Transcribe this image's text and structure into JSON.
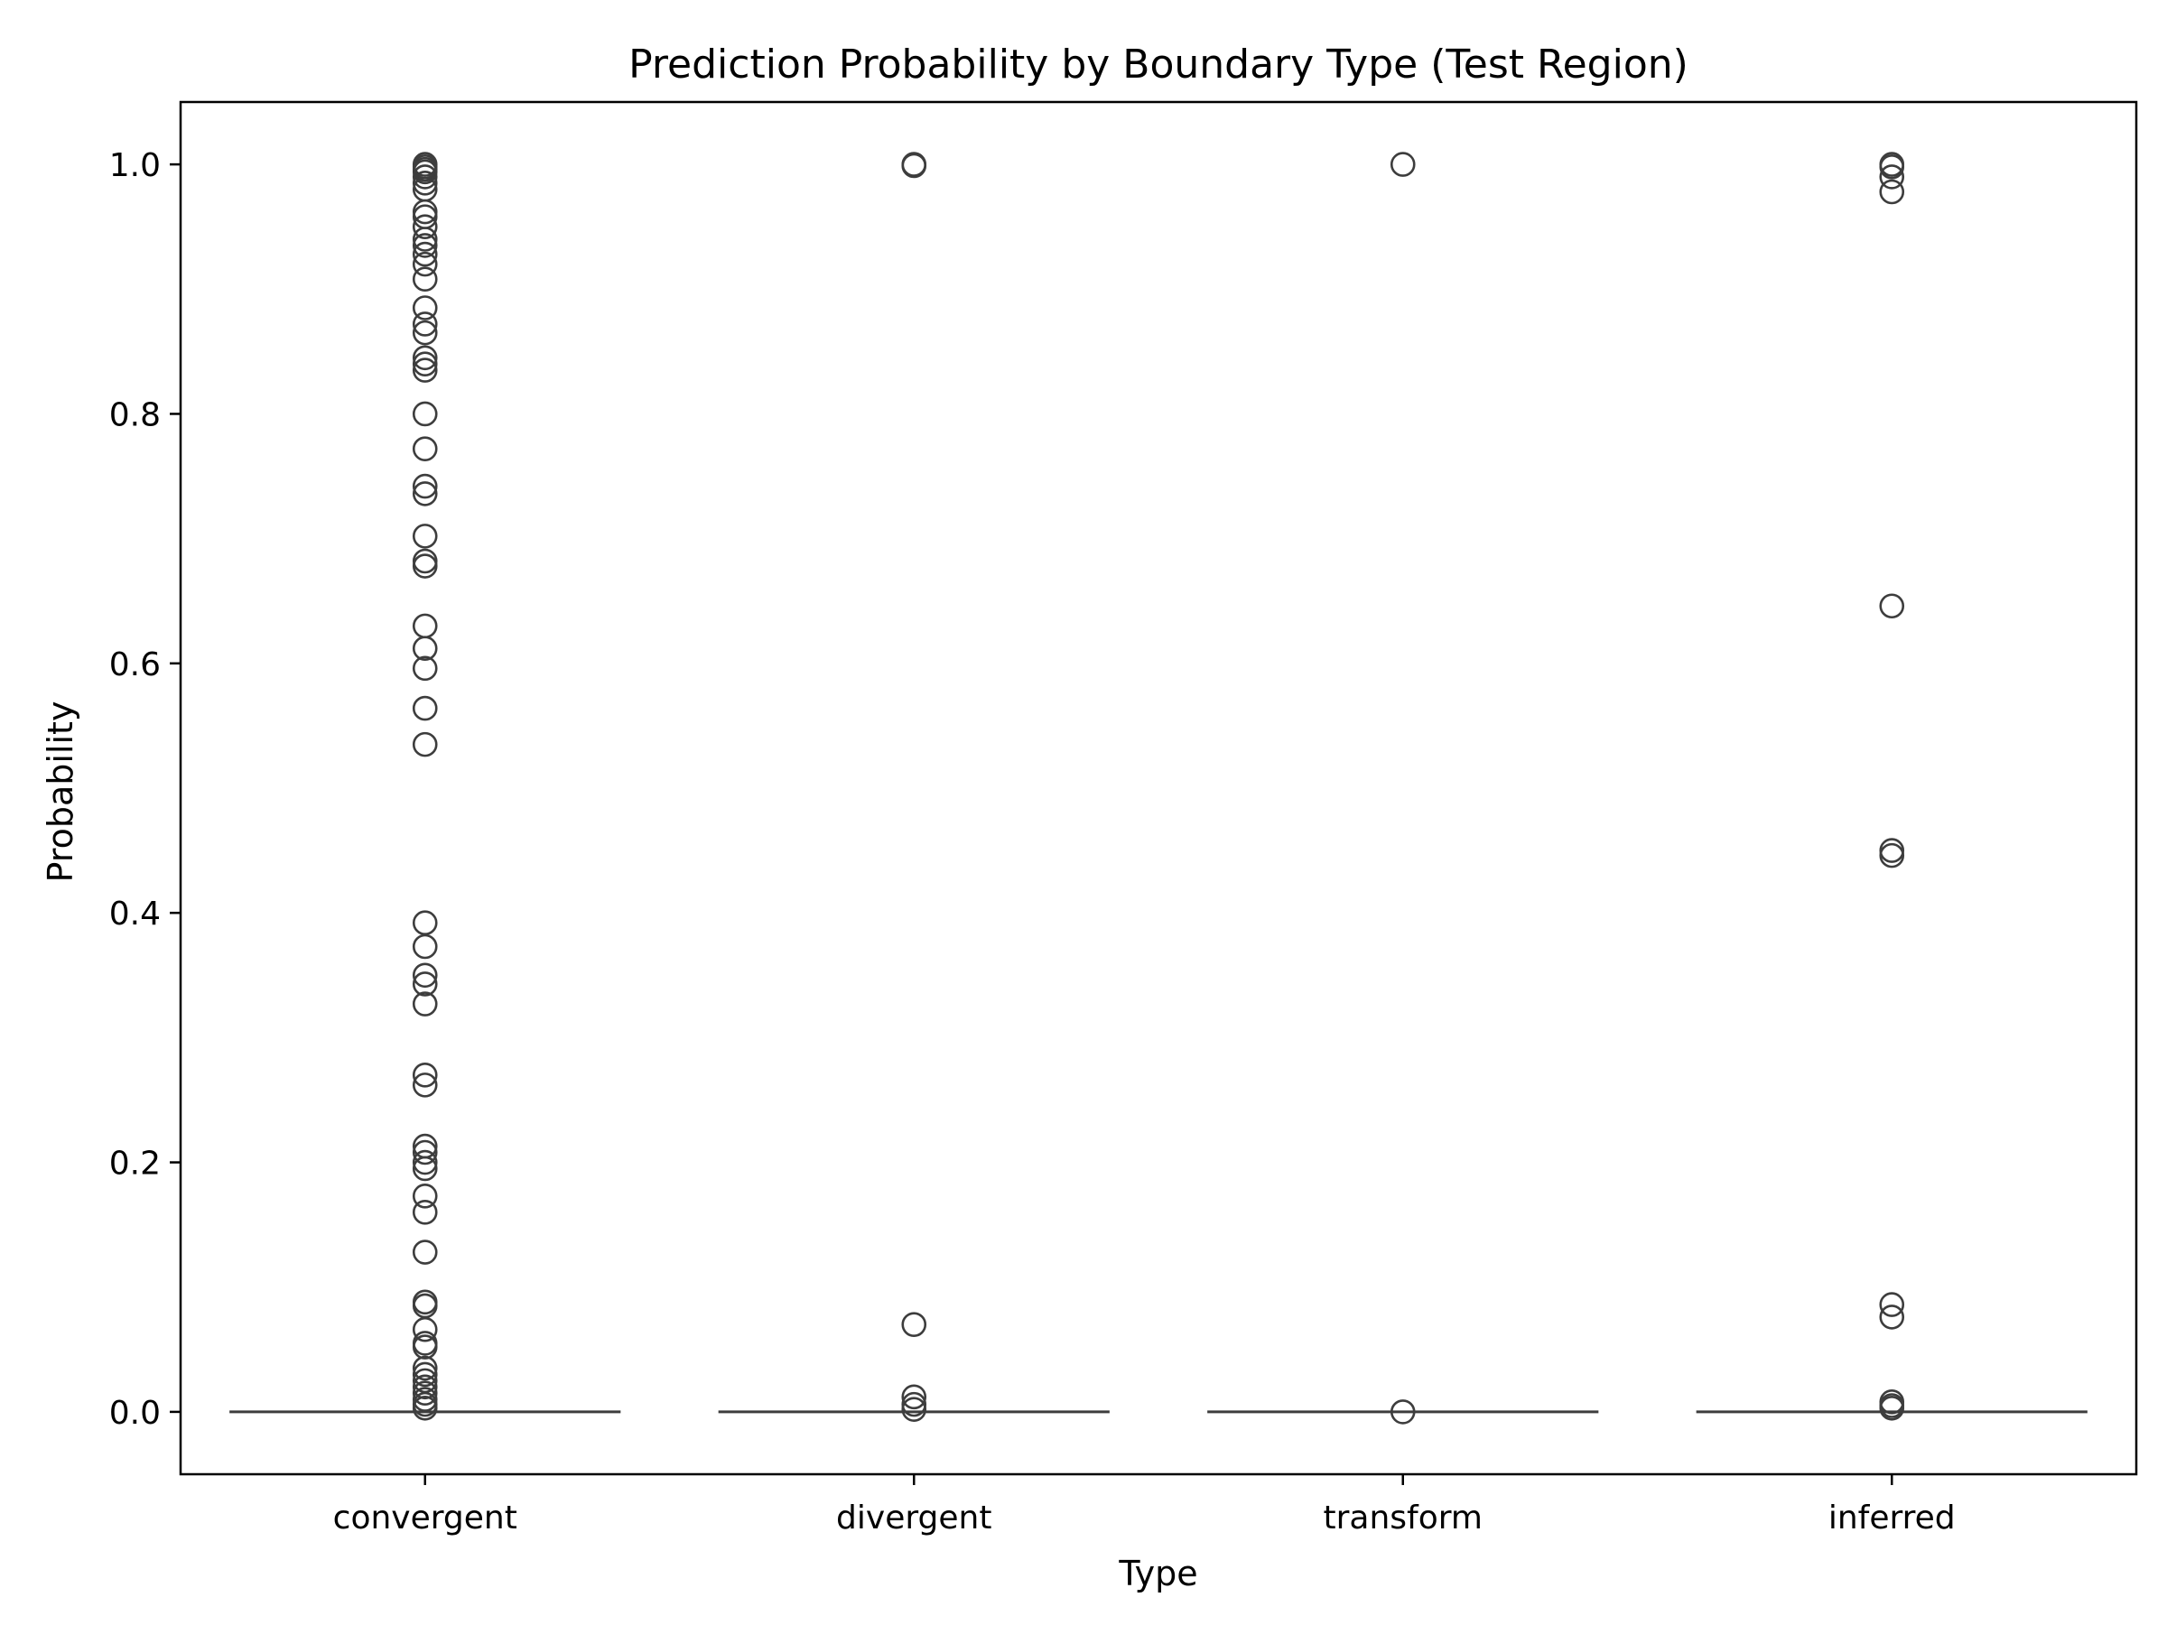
{
  "chart_data": {
    "type": "box",
    "title": "Prediction Probability by Boundary Type (Test Region)",
    "xlabel": "Type",
    "ylabel": "Probability",
    "ylim": [
      -0.05,
      1.05
    ],
    "yticks": [
      0.0,
      0.2,
      0.4,
      0.6,
      0.8,
      1.0
    ],
    "ytick_labels": [
      "0.0",
      "0.2",
      "0.4",
      "0.6",
      "0.8",
      "1.0"
    ],
    "categories": [
      "convergent",
      "divergent",
      "transform",
      "inferred"
    ],
    "grid": false,
    "colors": {
      "box": "#3d3d3d",
      "frame": "#000000",
      "background": "#ffffff"
    },
    "series": [
      {
        "category": "convergent",
        "median": 0.0,
        "q1": 0.0,
        "q3": 0.0,
        "whisker_low": 0.0,
        "whisker_high": 0.0,
        "outliers": [
          1.0,
          0.998,
          0.996,
          0.994,
          0.99,
          0.985,
          0.98,
          0.962,
          0.958,
          0.95,
          0.94,
          0.935,
          0.928,
          0.92,
          0.908,
          0.885,
          0.872,
          0.865,
          0.845,
          0.84,
          0.835,
          0.8,
          0.772,
          0.742,
          0.736,
          0.702,
          0.682,
          0.678,
          0.63,
          0.612,
          0.596,
          0.564,
          0.535,
          0.392,
          0.373,
          0.35,
          0.343,
          0.327,
          0.27,
          0.262,
          0.213,
          0.208,
          0.2,
          0.195,
          0.173,
          0.16,
          0.128,
          0.088,
          0.085,
          0.066,
          0.055,
          0.052,
          0.035,
          0.03,
          0.025,
          0.02,
          0.015,
          0.01,
          0.006,
          0.003
        ]
      },
      {
        "category": "divergent",
        "median": 0.0,
        "q1": 0.0,
        "q3": 0.0,
        "whisker_low": 0.0,
        "whisker_high": 0.0,
        "outliers": [
          1.0,
          0.999,
          0.07,
          0.012,
          0.006,
          0.002
        ]
      },
      {
        "category": "transform",
        "median": 0.0,
        "q1": 0.0,
        "q3": 0.0,
        "whisker_low": 0.0,
        "whisker_high": 0.0,
        "outliers": [
          1.0,
          0.0
        ]
      },
      {
        "category": "inferred",
        "median": 0.0,
        "q1": 0.0,
        "q3": 0.0,
        "whisker_low": 0.0,
        "whisker_high": 0.0,
        "outliers": [
          1.0,
          0.998,
          0.99,
          0.978,
          0.646,
          0.45,
          0.446,
          0.086,
          0.076,
          0.008,
          0.005,
          0.003
        ]
      }
    ]
  }
}
